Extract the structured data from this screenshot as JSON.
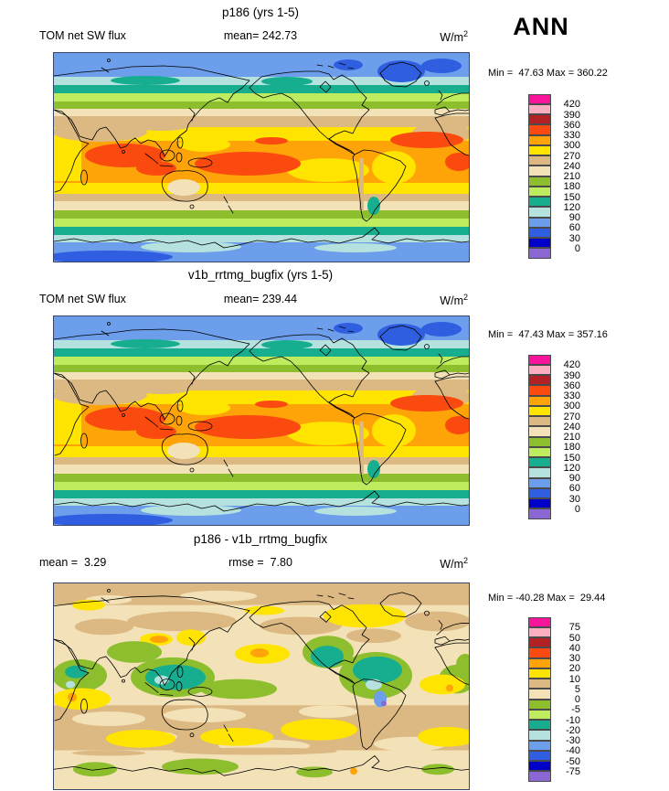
{
  "season_label": "ANN",
  "frame_color": "#3a4668",
  "coastline_color": "#000000",
  "palette": {
    "colors": [
      "#F8159B",
      "#FBAEC0",
      "#B22126",
      "#FB4A0F",
      "#FFA408",
      "#FFE400",
      "#DCB983",
      "#F3E2B8",
      "#8DBE2D",
      "#BEEC5E",
      "#17AE90",
      "#B5E2DE",
      "#6D9EEB",
      "#2F5FE0",
      "#0000C8",
      "#8A67D3"
    ],
    "names": [
      "magenta",
      "pink",
      "dark-red",
      "red-orange",
      "orange",
      "yellow",
      "tan",
      "cream",
      "olive-green",
      "light-green",
      "teal",
      "pale-cyan",
      "light-blue",
      "medium-blue",
      "dark-blue",
      "purple"
    ]
  },
  "panels": [
    {
      "title": "p186 (yrs 1-5)",
      "left_label": "TOM net SW flux",
      "center_label": "mean= 242.73",
      "units_base": "W/m",
      "units_exp": "2",
      "minmax_label": "Min =  47.63 Max = 360.22",
      "levels": [
        "420",
        "390",
        "360",
        "330",
        "300",
        "270",
        "240",
        "210",
        "180",
        "150",
        "120",
        "90",
        "60",
        "30",
        "0"
      ]
    },
    {
      "title": "v1b_rrtmg_bugfix (yrs 1-5)",
      "left_label": "TOM net SW flux",
      "center_label": "mean= 239.44",
      "units_base": "W/m",
      "units_exp": "2",
      "minmax_label": "Min =  47.43 Max = 357.16",
      "levels": [
        "420",
        "390",
        "360",
        "330",
        "300",
        "270",
        "240",
        "210",
        "180",
        "150",
        "120",
        "90",
        "60",
        "30",
        "0"
      ]
    },
    {
      "title": "p186 - v1b_rrtmg_bugfix",
      "left_label": "mean =  3.29",
      "center_label": "rmse =  7.80",
      "units_base": "W/m",
      "units_exp": "2",
      "minmax_label": "Min = -40.28 Max =  29.44",
      "levels": [
        "75",
        "50",
        "40",
        "30",
        "20",
        "10",
        "5",
        "0",
        "-5",
        "-10",
        "-20",
        "-30",
        "-40",
        "-50",
        "-75"
      ]
    }
  ],
  "chart_data": [
    {
      "type": "heatmap",
      "subtype": "filled-contour global map (equirectangular, 20E-centered-Pacific view)",
      "title": "p186 (yrs 1-5)",
      "variable": "TOM net SW flux",
      "season": "ANN",
      "units": "W/m2",
      "mean": 242.73,
      "min": 47.63,
      "max": 360.22,
      "contour_levels": [
        0,
        30,
        60,
        90,
        120,
        150,
        180,
        210,
        240,
        270,
        300,
        330,
        360,
        390,
        420
      ],
      "palette_top_to_bottom": [
        "#F8159B",
        "#FBAEC0",
        "#B22126",
        "#FB4A0F",
        "#FFA408",
        "#FFE400",
        "#DCB983",
        "#F3E2B8",
        "#8DBE2D",
        "#BEEC5E",
        "#17AE90",
        "#B5E2DE",
        "#6D9EEB",
        "#2F5FE0",
        "#0000C8",
        "#8A67D3"
      ],
      "pattern": "zonal bands: ~60-90 W/m2 at poles rising to 300-360 W/m2 in tropics; >330 W/m2 cores over Indian Ocean, west/central equatorial Pacific, east Pacific ITCZ and tropical Atlantic"
    },
    {
      "type": "heatmap",
      "subtype": "filled-contour global map (equirectangular, 20E-centered-Pacific view)",
      "title": "v1b_rrtmg_bugfix (yrs 1-5)",
      "variable": "TOM net SW flux",
      "season": "ANN",
      "units": "W/m2",
      "mean": 239.44,
      "min": 47.43,
      "max": 357.16,
      "contour_levels": [
        0,
        30,
        60,
        90,
        120,
        150,
        180,
        210,
        240,
        270,
        300,
        330,
        360,
        390,
        420
      ],
      "palette_top_to_bottom": [
        "#F8159B",
        "#FBAEC0",
        "#B22126",
        "#FB4A0F",
        "#FFA408",
        "#FFE400",
        "#DCB983",
        "#F3E2B8",
        "#8DBE2D",
        "#BEEC5E",
        "#17AE90",
        "#B5E2DE",
        "#6D9EEB",
        "#2F5FE0",
        "#0000C8",
        "#8A67D3"
      ],
      "pattern": "nearly identical zonal structure to p186 with slightly weaker tropical maxima"
    },
    {
      "type": "heatmap",
      "subtype": "filled-contour global difference map",
      "title": "p186 - v1b_rrtmg_bugfix",
      "season": "ANN",
      "units": "W/m2",
      "mean": 3.29,
      "rmse": 7.8,
      "min": -40.28,
      "max": 29.44,
      "contour_levels": [
        -75,
        -50,
        -40,
        -30,
        -20,
        -10,
        -5,
        0,
        5,
        10,
        20,
        30,
        40,
        50,
        75
      ],
      "palette_top_to_bottom": [
        "#F8159B",
        "#FBAEC0",
        "#B22126",
        "#FB4A0F",
        "#FFA408",
        "#FFE400",
        "#DCB983",
        "#F3E2B8",
        "#8DBE2D",
        "#BEEC5E",
        "#17AE90",
        "#B5E2DE",
        "#6D9EEB",
        "#2F5FE0",
        "#0000C8",
        "#8A67D3"
      ],
      "pattern": "mostly +0 to +10 (cream/tan); +10 to +20 yellow patches over Canada and southern mid-latitude oceans; -5 to -20 green/teal over Maritime Continent, tropical Africa, east Pacific/northern South America; small -20 to -40 cyan/blue spots near Peru"
    }
  ]
}
